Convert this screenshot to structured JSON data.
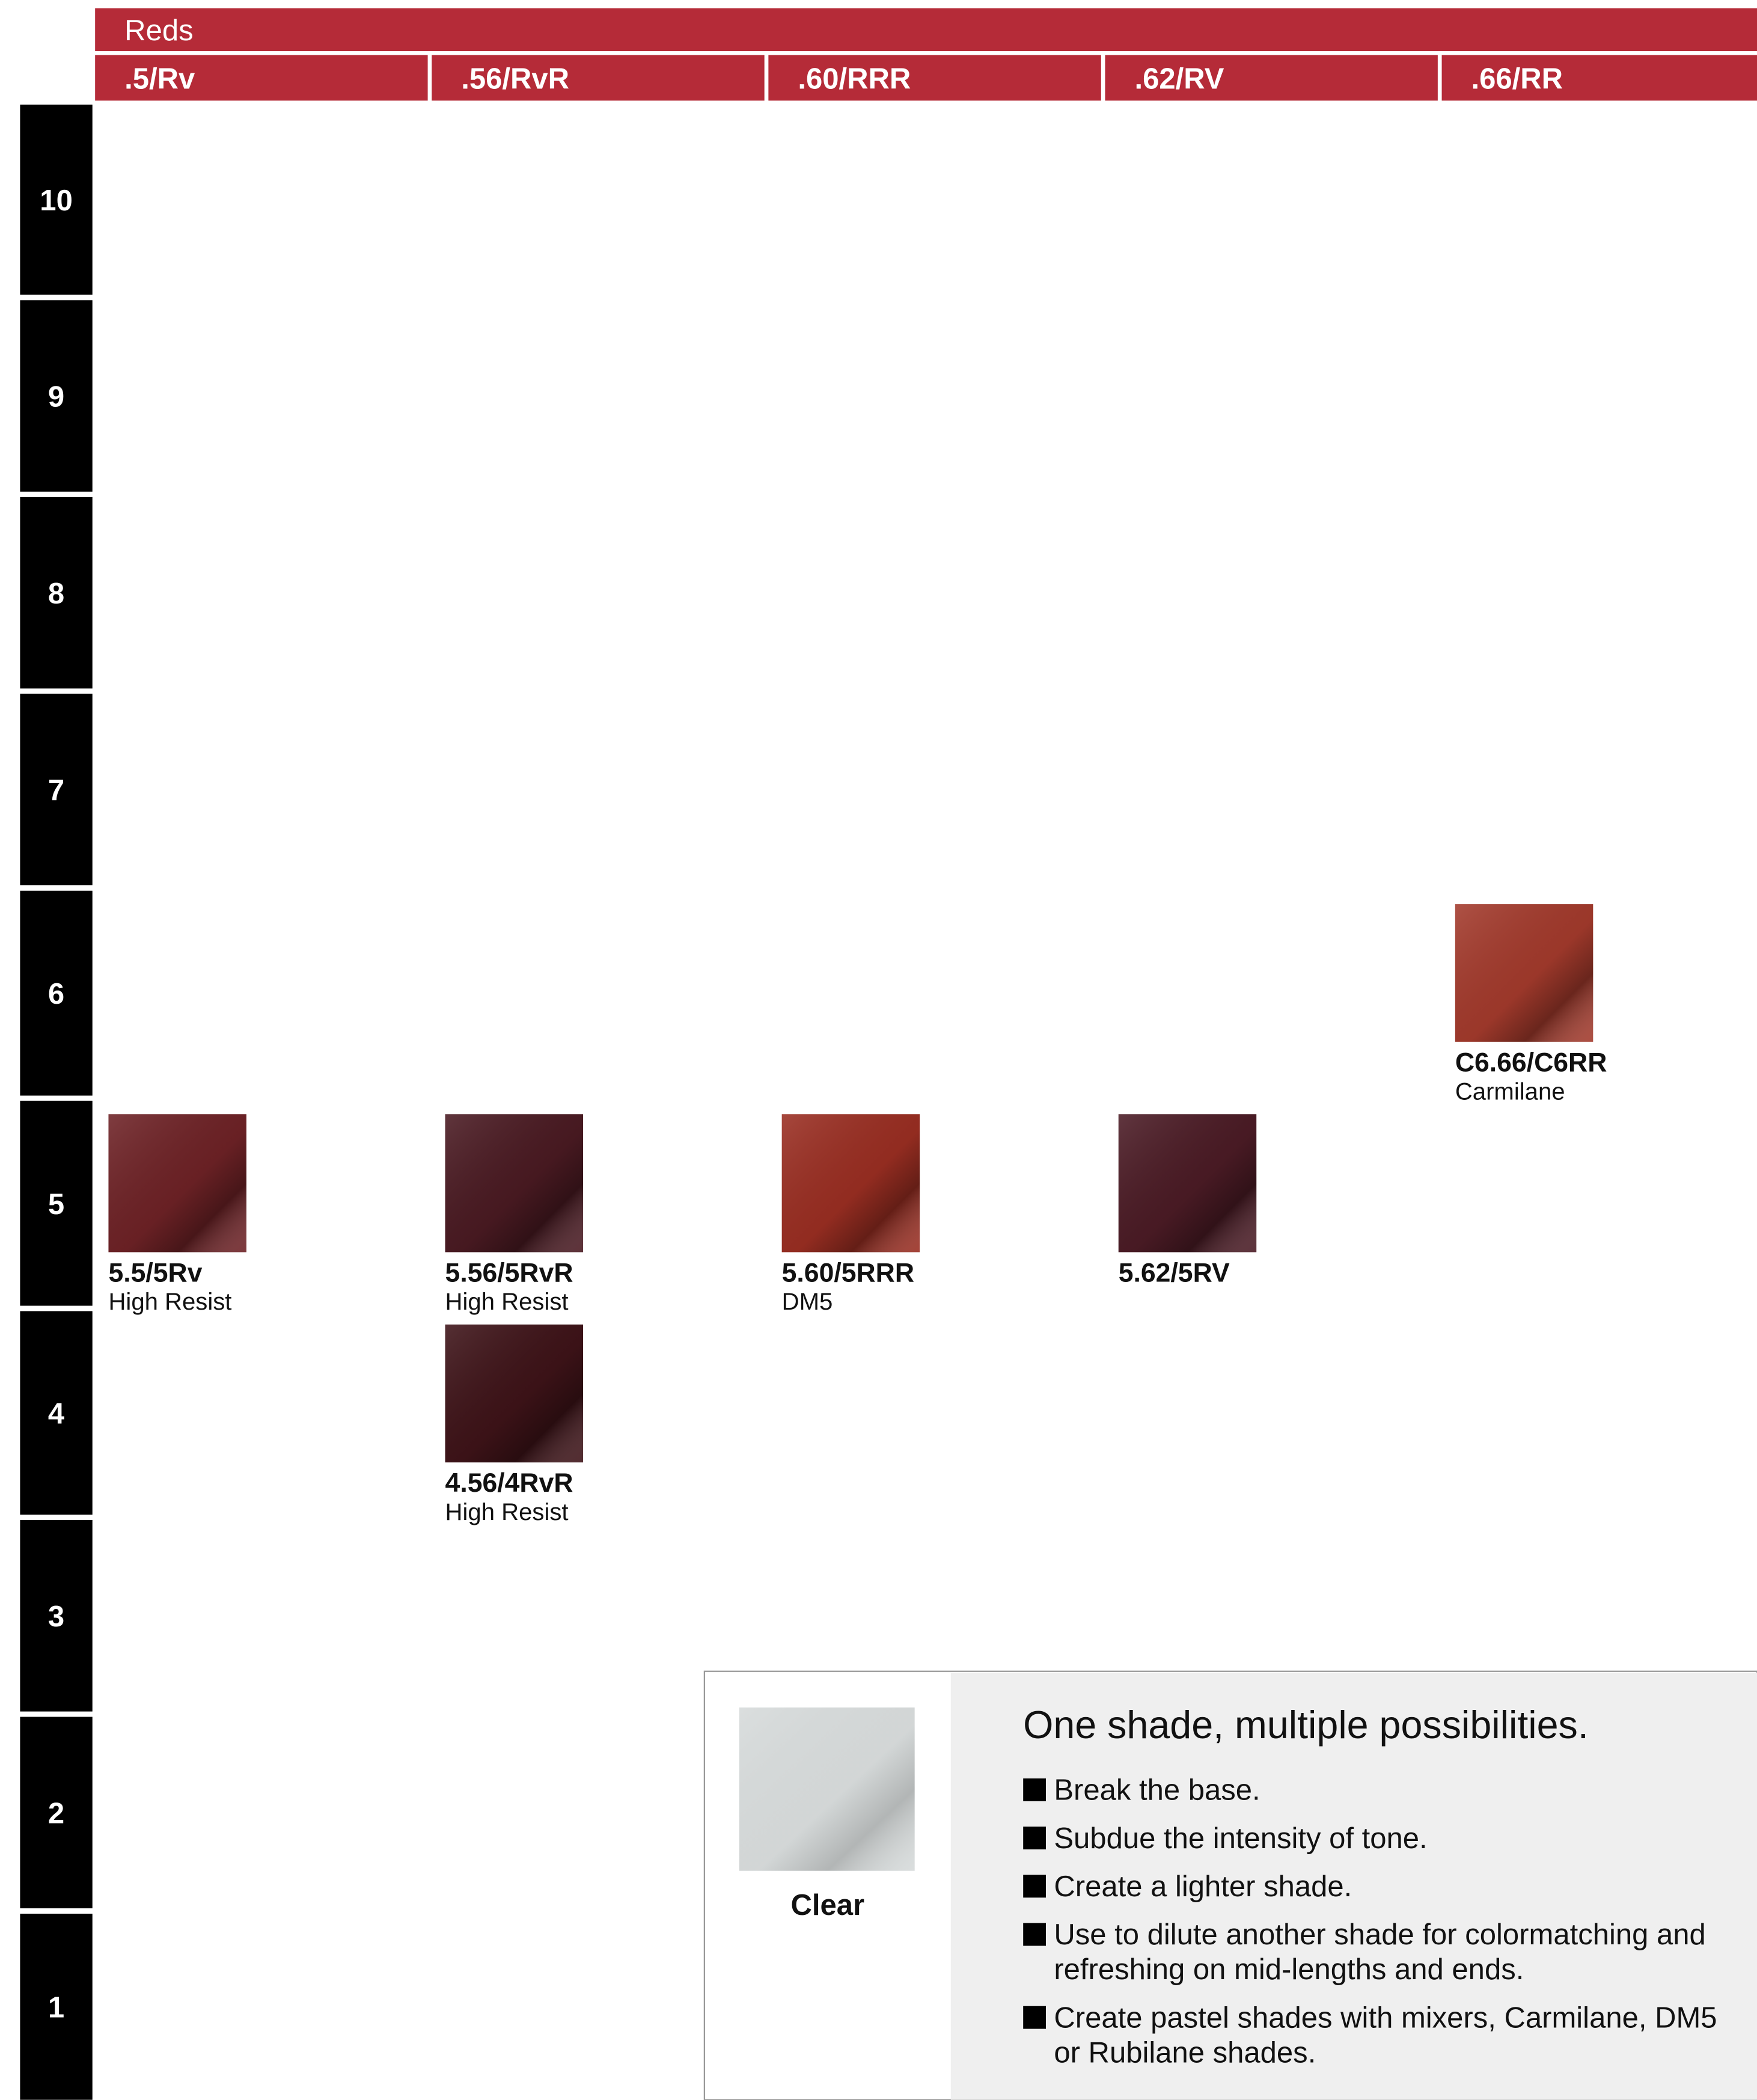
{
  "header": {
    "title": "Reds"
  },
  "columns": [
    {
      "label": ".5/Rv",
      "swatches": [
        {
          "code": "5.5/5Rv",
          "line": "High Resist",
          "color": "#6e2226"
        }
      ]
    },
    {
      "label": ".56/RvR",
      "swatches": [
        {
          "code": "5.56/5RvR",
          "line": "High Resist",
          "color": "#4a1a22"
        },
        {
          "code": "4.56/4RvR",
          "line": "High Resist",
          "color": "#3e1318"
        }
      ]
    },
    {
      "label": ".60/RRR",
      "swatches": [
        {
          "code": "5.60/5RRR",
          "line": "DM5",
          "color": "#9a2e22"
        }
      ]
    },
    {
      "label": ".62/RV",
      "swatches": [
        {
          "code": "5.62/5RV",
          "color": "#4b1b25"
        }
      ]
    },
    {
      "label": ".66/RR",
      "swatches": [
        {
          "code": "C6.66/C6RR",
          "line": "Carmilane",
          "color": "#a33a2c"
        }
      ]
    }
  ],
  "levels": [
    "10",
    "9",
    "8",
    "7",
    "6",
    "5",
    "4",
    "3",
    "2",
    "1"
  ],
  "clear": {
    "label": "Clear",
    "color": "#d8dcdc",
    "title": "One shade, multiple possibilities.",
    "bullets": [
      "Break the base.",
      "Subdue the intensity of tone.",
      "Create a lighter shade.",
      "Use to dilute another shade for colormatching and refreshing on mid-lengths and ends.",
      "Create pastel shades with mixers, Carmilane, DM5 or Rubilane shades."
    ]
  }
}
